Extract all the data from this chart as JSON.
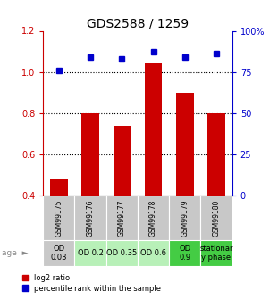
{
  "title": "GDS2588 / 1259",
  "samples": [
    "GSM99175",
    "GSM99176",
    "GSM99177",
    "GSM99178",
    "GSM99179",
    "GSM99180"
  ],
  "log2_ratio": [
    0.48,
    0.8,
    0.74,
    1.04,
    0.9,
    0.8
  ],
  "percentile_rank_pct": [
    76,
    84,
    83,
    87,
    84,
    86
  ],
  "bar_color": "#cc0000",
  "dot_color": "#0000cc",
  "ylim_left": [
    0.4,
    1.2
  ],
  "ylim_right": [
    0,
    100
  ],
  "yticks_left": [
    0.4,
    0.6,
    0.8,
    1.0,
    1.2
  ],
  "yticks_right": [
    0,
    25,
    50,
    75,
    100
  ],
  "ytick_right_labels": [
    "0",
    "25",
    "50",
    "75",
    "100%"
  ],
  "hlines": [
    0.6,
    0.8,
    1.0
  ],
  "age_labels": [
    "OD\n0.03",
    "OD 0.2",
    "OD 0.35",
    "OD 0.6",
    "OD\n0.9",
    "stationar\ny phase"
  ],
  "age_colors": [
    "#c8c8c8",
    "#b8f0b8",
    "#b8f0b8",
    "#b8f0b8",
    "#44cc44",
    "#44cc44"
  ],
  "legend_red_label": "log2 ratio",
  "legend_blue_label": "percentile rank within the sample",
  "bar_width": 0.55,
  "left_tick_color": "#cc0000",
  "right_tick_color": "#0000cc",
  "title_fontsize": 10,
  "tick_fontsize": 7,
  "age_label_fontsize": 6,
  "gsm_label_fontsize": 5.5,
  "gsm_bg_color": "#c8c8c8"
}
